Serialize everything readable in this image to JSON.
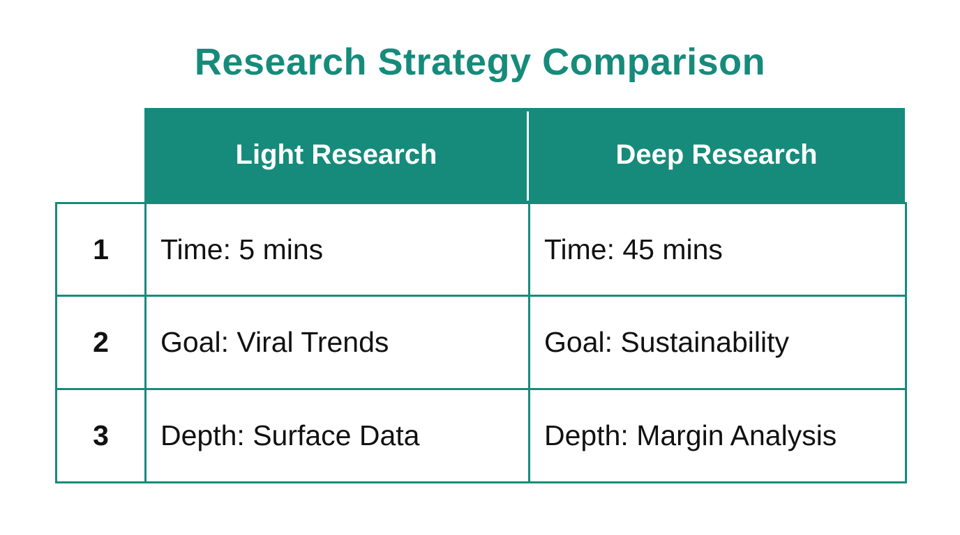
{
  "header": {
    "title": "Research Strategy Comparison"
  },
  "table": {
    "columns": [
      "Light Research",
      "Deep Research"
    ],
    "rows": [
      [
        "1",
        "Time: 5 mins",
        "Time: 45 mins"
      ],
      [
        "2",
        "Goal: Viral Trends",
        "Goal: Sustainability"
      ],
      [
        "3",
        "Depth: Surface Data",
        "Depth: Margin Analysis"
      ]
    ]
  }
}
